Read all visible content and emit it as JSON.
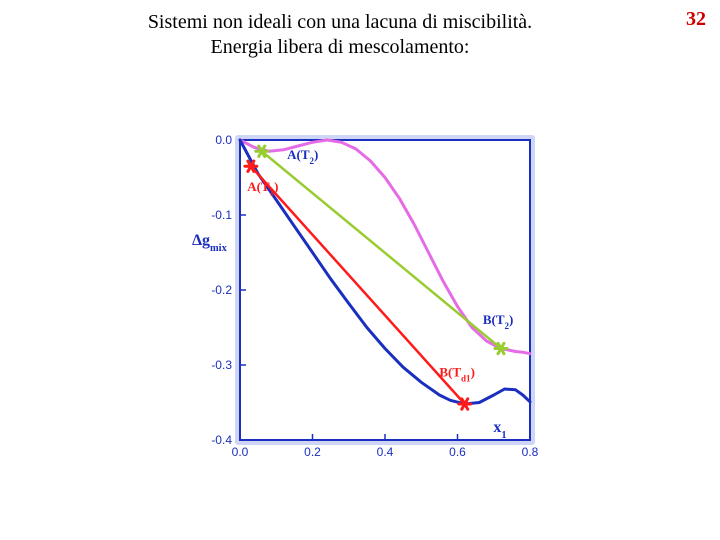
{
  "page_number": "32",
  "title_line1": "Sistemi non ideali con una lacuna di miscibilità.",
  "title_line2": "Energia libera di mescolamento:",
  "chart": {
    "type": "line",
    "background_color": "#ffffff",
    "frame_color": "#1a2fbf",
    "frame_width": 2,
    "tick_color": "#1a2fbf",
    "tick_len": 6,
    "xlim": [
      0.0,
      0.8
    ],
    "ylim": [
      -0.4,
      0.0
    ],
    "xtick_step": 0.2,
    "ytick_step": 0.1,
    "xtick_labels": [
      "0.0",
      "0.2",
      "0.4",
      "0.6",
      "0.8"
    ],
    "ytick_labels": [
      "0.0",
      "-0.1",
      "-0.2",
      "-0.3",
      "-0.4"
    ],
    "xlabel": "x",
    "xlabel_sub": "1",
    "ylabel": "Δg",
    "ylabel_sub": "mix",
    "label_color": "#1a2fbf",
    "label_fontsize": 16,
    "tick_fontsize": 12,
    "series": {
      "blue": {
        "color": "#1a2fbf",
        "width": 3,
        "points": [
          [
            0.0,
            0.0
          ],
          [
            0.05,
            -0.045
          ],
          [
            0.1,
            -0.08
          ],
          [
            0.15,
            -0.115
          ],
          [
            0.2,
            -0.15
          ],
          [
            0.25,
            -0.185
          ],
          [
            0.3,
            -0.218
          ],
          [
            0.35,
            -0.25
          ],
          [
            0.4,
            -0.278
          ],
          [
            0.45,
            -0.303
          ],
          [
            0.5,
            -0.323
          ],
          [
            0.55,
            -0.34
          ],
          [
            0.58,
            -0.347
          ],
          [
            0.62,
            -0.352
          ],
          [
            0.66,
            -0.35
          ],
          [
            0.7,
            -0.34
          ],
          [
            0.73,
            -0.332
          ],
          [
            0.76,
            -0.333
          ],
          [
            0.78,
            -0.34
          ],
          [
            0.8,
            -0.349
          ]
        ]
      },
      "red_line": {
        "color": "#ff1a1a",
        "width": 2.5,
        "x1": 0.03,
        "y1": -0.035,
        "x2": 0.62,
        "y2": -0.352
      },
      "magenta": {
        "color": "#e66be6",
        "width": 3,
        "points": [
          [
            0.0,
            0.0
          ],
          [
            0.04,
            -0.01
          ],
          [
            0.08,
            -0.015
          ],
          [
            0.12,
            -0.013
          ],
          [
            0.16,
            -0.008
          ],
          [
            0.2,
            -0.003
          ],
          [
            0.24,
            0.0
          ],
          [
            0.28,
            -0.003
          ],
          [
            0.32,
            -0.012
          ],
          [
            0.36,
            -0.028
          ],
          [
            0.4,
            -0.05
          ],
          [
            0.44,
            -0.078
          ],
          [
            0.48,
            -0.112
          ],
          [
            0.52,
            -0.15
          ],
          [
            0.56,
            -0.188
          ],
          [
            0.6,
            -0.222
          ],
          [
            0.64,
            -0.25
          ],
          [
            0.68,
            -0.268
          ],
          [
            0.72,
            -0.278
          ],
          [
            0.76,
            -0.282
          ],
          [
            0.78,
            -0.283
          ],
          [
            0.8,
            -0.285
          ]
        ]
      },
      "green_line": {
        "color": "#99cc33",
        "width": 2.5,
        "x1": 0.06,
        "y1": -0.015,
        "x2": 0.72,
        "y2": -0.278
      }
    },
    "markers": [
      {
        "x": 0.03,
        "y": -0.035,
        "color": "#ff1a1a"
      },
      {
        "x": 0.62,
        "y": -0.352,
        "color": "#ff1a1a"
      },
      {
        "x": 0.06,
        "y": -0.015,
        "color": "#99cc33"
      },
      {
        "x": 0.72,
        "y": -0.278,
        "color": "#99cc33"
      }
    ],
    "marker_size": 12,
    "curve_labels": [
      {
        "text": "A(T",
        "sub": "2",
        "close": ")",
        "x": 0.13,
        "y": -0.025,
        "color": "#1a2fbf"
      },
      {
        "text": "A(T",
        "sub": "1",
        "close": ")",
        "x": 0.02,
        "y": -0.068,
        "color": "#ff1a1a"
      },
      {
        "text": "B(T",
        "sub": "2",
        "close": ")",
        "x": 0.67,
        "y": -0.245,
        "color": "#1a2fbf"
      },
      {
        "text": "B(T",
        "sub": "d1",
        "close": ")",
        "x": 0.55,
        "y": -0.315,
        "color": "#ff1a1a"
      }
    ]
  }
}
